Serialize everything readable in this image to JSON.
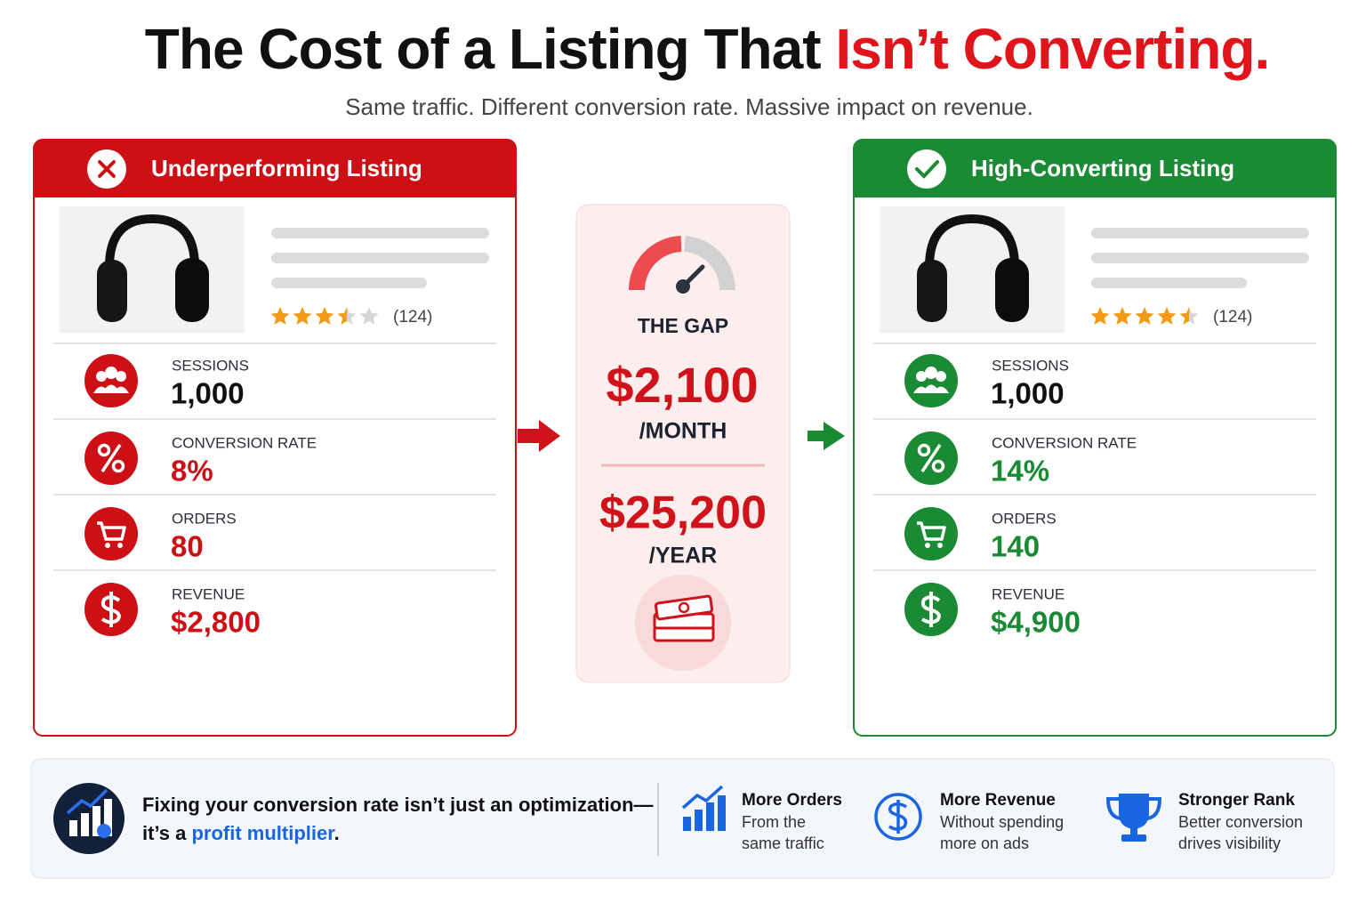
{
  "header": {
    "title_lead": "The Cost of a Listing That",
    "title_accent": "Isn’t Converting.",
    "subtitle": "Same traffic. Different conversion rate. Massive impact on revenue."
  },
  "panels": [
    {
      "title": "Underperforming Listing",
      "color": "#cc1016",
      "reviews": "(124)",
      "metrics": [
        {
          "label": "SESSIONS",
          "value": "1,000"
        },
        {
          "label": "CONVERSION RATE",
          "value": "8%"
        },
        {
          "label": "ORDERS",
          "value": "80"
        },
        {
          "label": "REVENUE",
          "value": "$2,800"
        }
      ]
    },
    {
      "title": "High-Converting Listing",
      "color": "#1a8a34",
      "reviews": "(124)",
      "metrics": [
        {
          "label": "SESSIONS",
          "value": "1,000"
        },
        {
          "label": "CONVERSION RATE",
          "value": "14%"
        },
        {
          "label": "ORDERS",
          "value": "140"
        },
        {
          "label": "REVENUE",
          "value": "$4,900"
        }
      ]
    }
  ],
  "gap": {
    "label": "THE GAP",
    "monthly": "$2,100",
    "monthly_unit": "/MONTH",
    "yearly": "$25,200",
    "yearly_unit": "/YEAR"
  },
  "footer": {
    "message_line1": "Fixing your conversion rate isn’t just an optimization—",
    "message_lead": "it’s a",
    "message_accent": "profit multiplier",
    "message_end": ".",
    "benefits": [
      {
        "title": "More Orders",
        "lines": [
          "From the",
          "same traffic"
        ]
      },
      {
        "title": "More Revenue",
        "lines": [
          "Without spending",
          "more on ads"
        ]
      },
      {
        "title": "Stronger Rank",
        "lines": [
          "Better conversion",
          "drives visibility"
        ]
      }
    ]
  }
}
